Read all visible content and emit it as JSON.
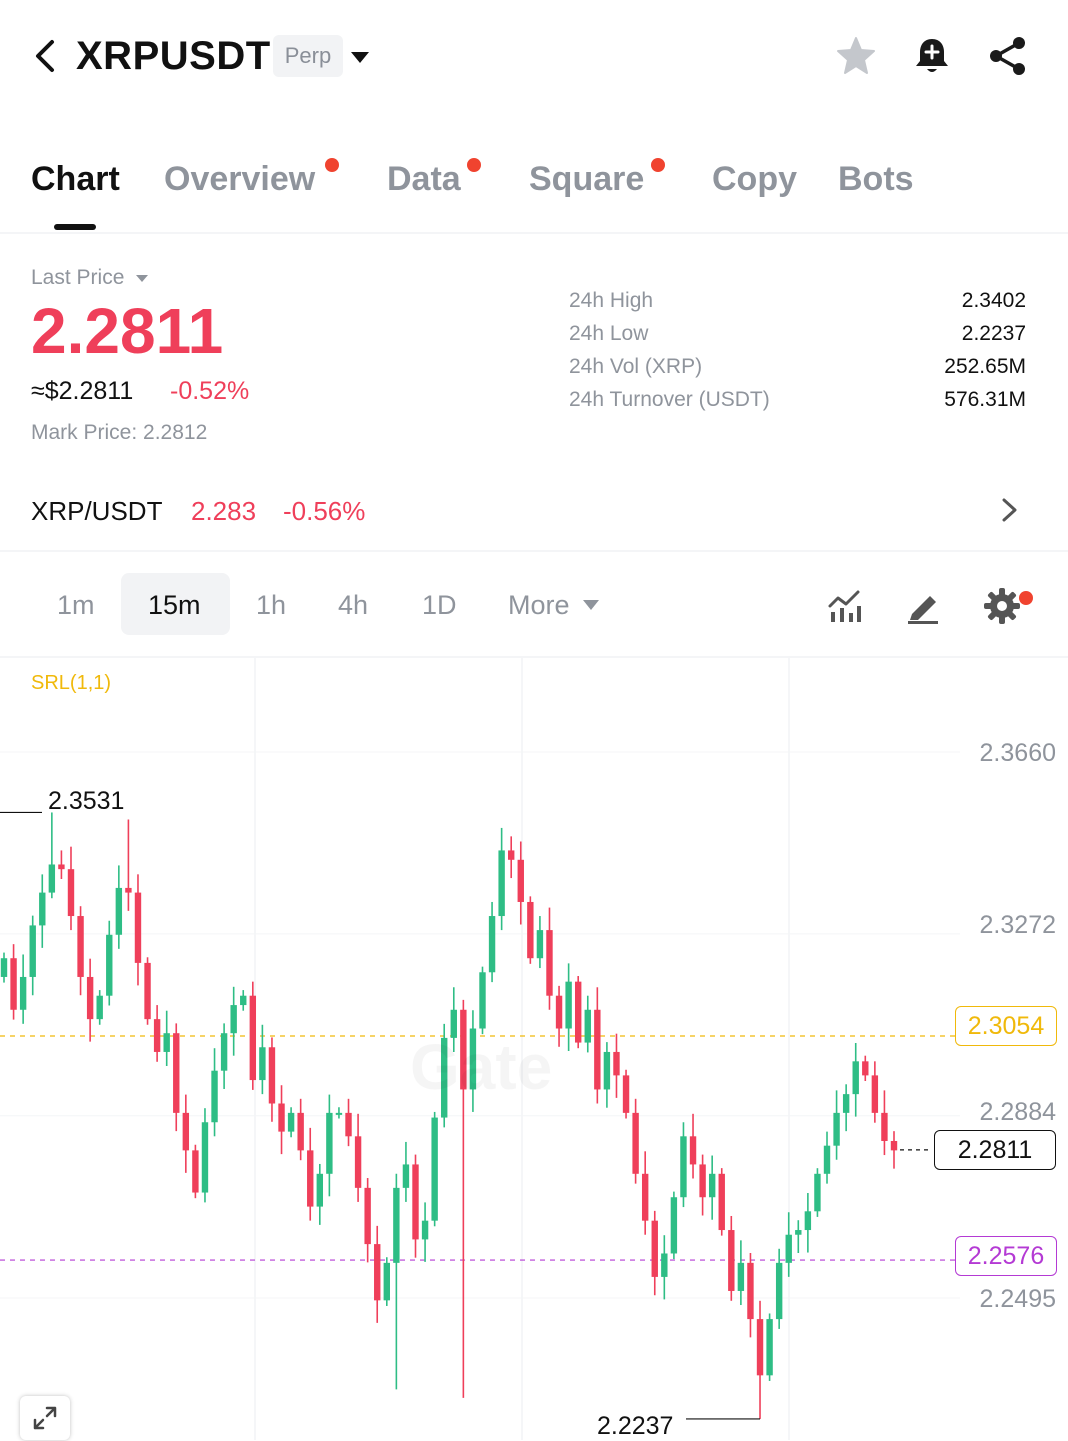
{
  "header": {
    "symbol": "XRPUSDT",
    "badge": "Perp",
    "icons": [
      "back-icon",
      "star-icon",
      "bell-plus-icon",
      "share-icon"
    ]
  },
  "tabs": [
    {
      "label": "Chart",
      "active": true,
      "dot": false
    },
    {
      "label": "Overview",
      "active": false,
      "dot": true
    },
    {
      "label": "Data",
      "active": false,
      "dot": true
    },
    {
      "label": "Square",
      "active": false,
      "dot": true
    },
    {
      "label": "Copy",
      "active": false,
      "dot": false
    },
    {
      "label": "Bots",
      "active": false,
      "dot": false
    }
  ],
  "price": {
    "label": "Last Price",
    "last": "2.2811",
    "usd": "≈$2.2811",
    "change": "-0.52%",
    "mark": "Mark Price:  2.2812"
  },
  "stats": [
    {
      "label": "24h High",
      "value": "2.3402"
    },
    {
      "label": "24h Low",
      "value": "2.2237"
    },
    {
      "label": "24h Vol (XRP)",
      "value": "252.65M"
    },
    {
      "label": "24h Turnover (USDT)",
      "value": "576.31M"
    }
  ],
  "spot": {
    "pair": "XRP/USDT",
    "price": "2.283",
    "change": "-0.56%"
  },
  "intervals": {
    "items": [
      "1m",
      "15m",
      "1h",
      "4h",
      "1D"
    ],
    "active": "15m",
    "more": "More"
  },
  "chart": {
    "indicator": "SRL(1,1)",
    "watermark": "Gate",
    "axis": [
      "2.3660",
      "2.3272",
      "2.2884",
      "2.2495"
    ],
    "high_label": "2.3531",
    "low_label": "2.2237",
    "current": "2.2811",
    "line_yellow": "2.3054",
    "line_purple": "2.2576"
  },
  "colors": {
    "up": "#2ebd85",
    "down": "#ef3f5a",
    "accent_dot": "#f0432f",
    "srl_yellow": "#f0b90b",
    "srl_purple": "#b43ad4"
  },
  "chart_data": {
    "type": "candlestick",
    "interval": "15m",
    "ylim": [
      2.2237,
      2.366
    ],
    "current_price": 2.2811,
    "session_high": 2.3531,
    "session_low": 2.2237,
    "reference_lines": [
      2.3054,
      2.2576
    ],
    "closes": [
      2.322,
      2.311,
      2.318,
      2.329,
      2.336,
      2.342,
      2.341,
      2.331,
      2.318,
      2.309,
      2.314,
      2.327,
      2.337,
      2.336,
      2.321,
      2.309,
      2.302,
      2.306,
      2.289,
      2.281,
      2.272,
      2.287,
      2.298,
      2.306,
      2.312,
      2.314,
      2.296,
      2.303,
      2.291,
      2.285,
      2.289,
      2.281,
      2.269,
      2.276,
      2.289,
      2.289,
      2.284,
      2.273,
      2.261,
      2.249,
      2.257,
      2.273,
      2.278,
      2.262,
      2.266,
      2.288,
      2.305,
      2.311,
      2.294,
      2.307,
      2.319,
      2.331,
      2.345,
      2.343,
      2.334,
      2.322,
      2.328,
      2.314,
      2.307,
      2.317,
      2.304,
      2.311,
      2.294,
      2.302,
      2.297,
      2.289,
      2.276,
      2.266,
      2.254,
      2.259,
      2.271,
      2.284,
      2.278,
      2.271,
      2.276,
      2.264,
      2.251,
      2.257,
      2.245,
      2.233,
      2.245,
      2.257,
      2.263,
      2.264,
      2.268,
      2.276,
      2.282,
      2.289,
      2.293,
      2.3,
      2.297,
      2.289,
      2.283,
      2.281
    ]
  }
}
